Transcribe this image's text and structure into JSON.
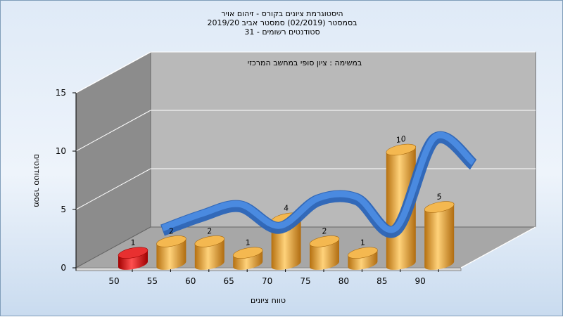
{
  "header": {
    "line1": "היסטוגרמת ציונים בקורס - זיהום אויר",
    "line2": "בסמסטר  (02/2019)  סמסטר אביב 2019/20",
    "line3": "סטודנטים רשומים - 31"
  },
  "chart_data": {
    "type": "bar",
    "subtitle": "במשימה : ציון סופי במחשב המרכזי",
    "xlabel": "טווח ציונים",
    "ylabel": "מספר סטודנטים",
    "ylim": [
      0,
      15
    ],
    "yticks": [
      0,
      5,
      10,
      15
    ],
    "xticks": [
      "50",
      "55",
      "60",
      "65",
      "70",
      "75",
      "80",
      "85",
      "90"
    ],
    "categories": [
      "50",
      "55",
      "60",
      "65",
      "70",
      "75",
      "80",
      "85",
      "90"
    ],
    "values": [
      1,
      2,
      2,
      1,
      4,
      2,
      1,
      10,
      5
    ],
    "trend_values": [
      1.2,
      2.4,
      3.2,
      1.4,
      3.7,
      3.8,
      1.2,
      8.8,
      6.7
    ],
    "grid": true,
    "colors": {
      "bars": "#f0a830",
      "highlight_bar": "#e01010",
      "trend": "#3a7ad0",
      "back_wall": "#b8b8b8",
      "side_wall": "#8a8a8a",
      "floor": "#a8a8a8"
    }
  }
}
